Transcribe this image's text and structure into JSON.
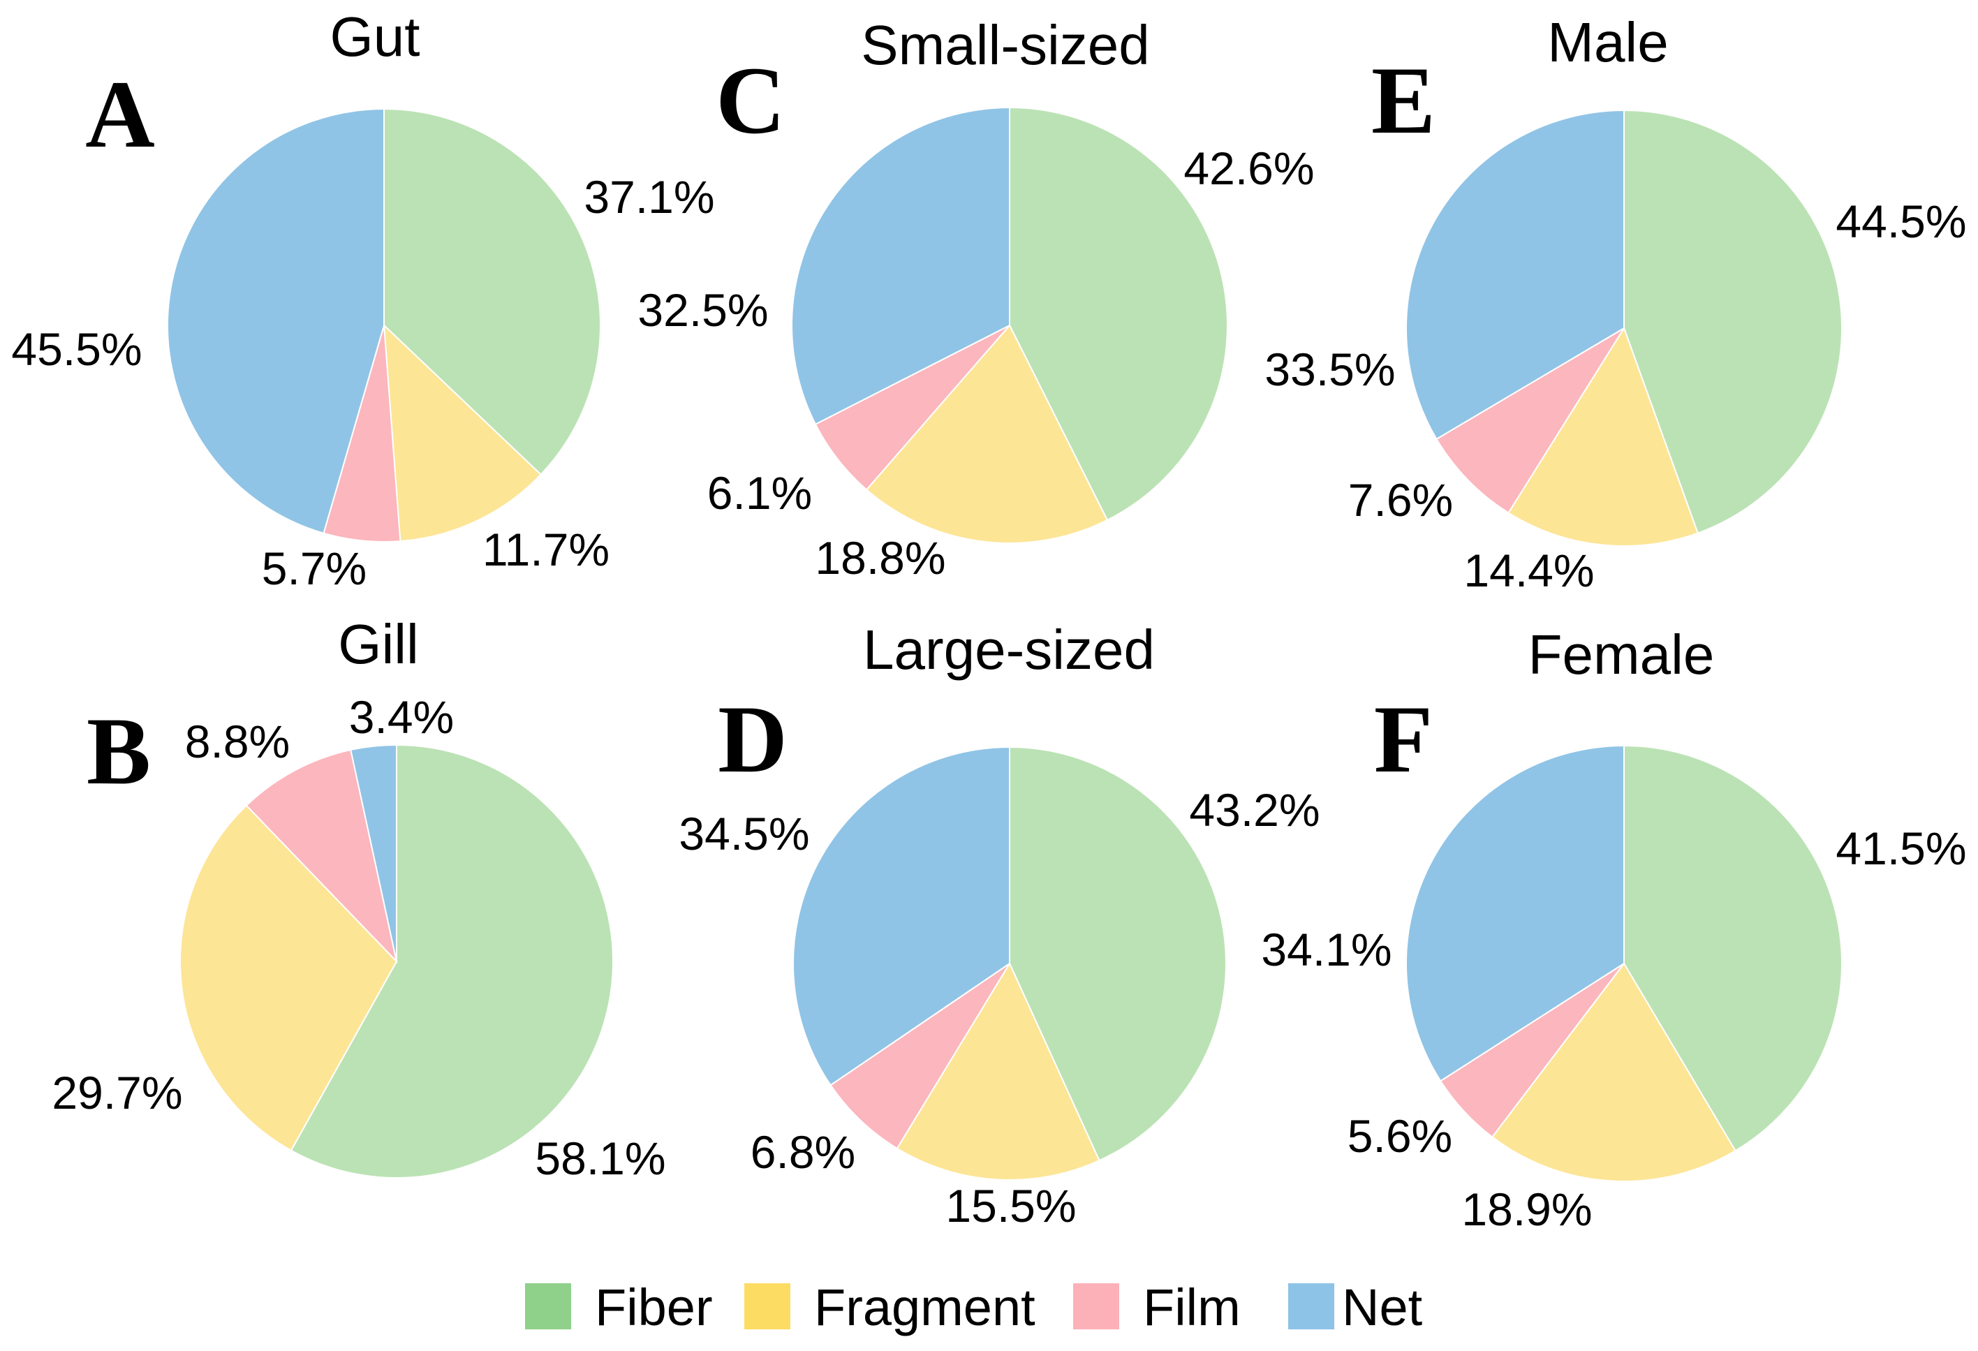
{
  "chart_data": [
    {
      "type": "pie",
      "panel": "A",
      "title": "Gut",
      "categories": [
        "Fiber",
        "Fragment",
        "Film",
        "Net"
      ],
      "values": [
        37.1,
        11.7,
        5.7,
        45.5
      ],
      "labels": [
        "37.1%",
        "11.7%",
        "5.7%",
        "45.5%"
      ]
    },
    {
      "type": "pie",
      "panel": "B",
      "title": "Gill",
      "categories": [
        "Fiber",
        "Fragment",
        "Film",
        "Net"
      ],
      "values": [
        58.1,
        29.7,
        8.8,
        3.4
      ],
      "labels": [
        "58.1%",
        "29.7%",
        "8.8%",
        "3.4%"
      ]
    },
    {
      "type": "pie",
      "panel": "C",
      "title": "Small-sized",
      "categories": [
        "Fiber",
        "Fragment",
        "Film",
        "Net"
      ],
      "values": [
        42.6,
        18.8,
        6.1,
        32.5
      ],
      "labels": [
        "42.6%",
        "18.8%",
        "6.1%",
        "32.5%"
      ]
    },
    {
      "type": "pie",
      "panel": "D",
      "title": "Large-sized",
      "categories": [
        "Fiber",
        "Fragment",
        "Film",
        "Net"
      ],
      "values": [
        43.2,
        15.5,
        6.8,
        34.5
      ],
      "labels": [
        "43.2%",
        "15.5%",
        "6.8%",
        "34.5%"
      ]
    },
    {
      "type": "pie",
      "panel": "E",
      "title": "Male",
      "categories": [
        "Fiber",
        "Fragment",
        "Film",
        "Net"
      ],
      "values": [
        44.5,
        14.4,
        7.6,
        33.5
      ],
      "labels": [
        "44.5%",
        "14.4%",
        "7.6%",
        "33.5%"
      ]
    },
    {
      "type": "pie",
      "panel": "F",
      "title": "Female",
      "categories": [
        "Fiber",
        "Fragment",
        "Film",
        "Net"
      ],
      "values": [
        41.5,
        18.9,
        5.6,
        34.1
      ],
      "labels": [
        "41.5%",
        "18.9%",
        "5.6%",
        "34.1%"
      ]
    }
  ],
  "legend": {
    "placement": "bottom-center",
    "items": [
      {
        "label": "Fiber",
        "color": "#8fd18a"
      },
      {
        "label": "Fragment",
        "color": "#fcdc63"
      },
      {
        "label": "Film",
        "color": "#fcb1b8"
      },
      {
        "label": "Net",
        "color": "#8ec3e8"
      }
    ]
  },
  "colors": {
    "Fiber": "#bbe2b4",
    "Fragment": "#fde596",
    "Film": "#fcb6bd",
    "Net": "#90c4e6"
  }
}
